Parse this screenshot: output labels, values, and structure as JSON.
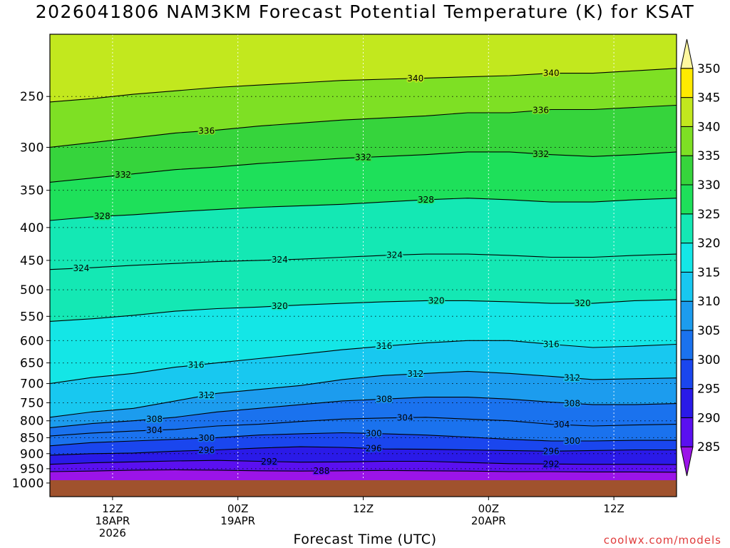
{
  "chart_data": {
    "type": "heatmap",
    "title": "2026041806 NAM3KM Forecast Potential Temperature (K) for KSAT",
    "xlabel": "Forecast Time (UTC)",
    "ylabel": "",
    "y_axis": {
      "scale": "log-pressure",
      "ticks": [
        250,
        300,
        350,
        400,
        450,
        500,
        550,
        600,
        650,
        700,
        750,
        800,
        850,
        900,
        950,
        1000
      ],
      "ticks_text": [
        "250",
        "300",
        "350",
        "400",
        "450",
        "500",
        "550",
        "600",
        "650",
        "700",
        "750",
        "800",
        "850",
        "900",
        "950",
        "1000"
      ],
      "range": [
        200,
        1050
      ]
    },
    "x_axis": {
      "ticks": [
        {
          "t": 6,
          "lines": [
            "12Z",
            "18APR",
            "2026"
          ]
        },
        {
          "t": 18,
          "lines": [
            "00Z",
            "19APR"
          ]
        },
        {
          "t": 30,
          "lines": [
            "12Z"
          ]
        },
        {
          "t": 42,
          "lines": [
            "00Z",
            "20APR"
          ]
        },
        {
          "t": 54,
          "lines": [
            "12Z"
          ]
        }
      ],
      "range_hours": [
        0,
        60
      ]
    },
    "colorbar": {
      "levels": [
        285,
        290,
        295,
        300,
        305,
        310,
        315,
        320,
        325,
        330,
        335,
        340,
        345,
        350
      ],
      "labels": [
        "285",
        "290",
        "295",
        "300",
        "305",
        "310",
        "315",
        "320",
        "325",
        "330",
        "335",
        "340",
        "345",
        "350"
      ],
      "colors": [
        "#9b14e8",
        "#5a10f0",
        "#2a1ae8",
        "#1a46ee",
        "#1a72ee",
        "#1c9cee",
        "#18c8f0",
        "#14e6e6",
        "#14e8b4",
        "#1ee05a",
        "#36d43c",
        "#7ee024",
        "#c2e81e",
        "#ffea00",
        "#fff8a0"
      ]
    },
    "contours": [
      {
        "level": 288,
        "p": [
          960,
          958,
          955,
          954,
          955,
          957,
          958,
          957,
          956,
          957,
          958,
          960,
          960,
          961,
          961,
          962
        ],
        "labels": [
          {
            "t": 26,
            "text": "288"
          }
        ]
      },
      {
        "level": 292,
        "p": [
          935,
          930,
          927,
          924,
          922,
          925,
          928,
          927,
          925,
          925,
          929,
          933,
          934,
          935,
          935,
          936
        ],
        "labels": [
          {
            "t": 21,
            "text": "292"
          },
          {
            "t": 48,
            "text": "292"
          }
        ]
      },
      {
        "level": 296,
        "p": [
          905,
          900,
          898,
          892,
          888,
          882,
          878,
          880,
          885,
          886,
          888,
          890,
          892,
          890,
          888,
          888
        ],
        "labels": [
          {
            "t": 15,
            "text": "296"
          },
          {
            "t": 31,
            "text": "296"
          },
          {
            "t": 48,
            "text": "296"
          }
        ]
      },
      {
        "level": 300,
        "p": [
          875,
          865,
          860,
          855,
          850,
          842,
          838,
          835,
          838,
          842,
          848,
          855,
          860,
          860,
          858,
          858
        ],
        "labels": [
          {
            "t": 15,
            "text": "300"
          },
          {
            "t": 31,
            "text": "300"
          },
          {
            "t": 50,
            "text": "300"
          }
        ]
      },
      {
        "level": 304,
        "p": [
          845,
          836,
          830,
          825,
          815,
          810,
          802,
          795,
          792,
          790,
          795,
          800,
          810,
          815,
          812,
          810
        ],
        "labels": [
          {
            "t": 10,
            "text": "304"
          },
          {
            "t": 34,
            "text": "304"
          },
          {
            "t": 49,
            "text": "304"
          }
        ]
      },
      {
        "level": 308,
        "p": [
          820,
          808,
          800,
          790,
          775,
          765,
          755,
          745,
          740,
          735,
          735,
          740,
          748,
          755,
          755,
          752
        ],
        "labels": [
          {
            "t": 10,
            "text": "308"
          },
          {
            "t": 32,
            "text": "308"
          },
          {
            "t": 50,
            "text": "308"
          }
        ]
      },
      {
        "level": 312,
        "p": [
          790,
          775,
          765,
          745,
          725,
          715,
          705,
          690,
          680,
          675,
          670,
          675,
          682,
          690,
          688,
          686
        ],
        "labels": [
          {
            "t": 15,
            "text": "312"
          },
          {
            "t": 35,
            "text": "312"
          },
          {
            "t": 50,
            "text": "312"
          }
        ]
      },
      {
        "level": 316,
        "p": [
          700,
          685,
          675,
          660,
          650,
          640,
          630,
          620,
          612,
          605,
          600,
          600,
          608,
          615,
          612,
          608
        ],
        "labels": [
          {
            "t": 14,
            "text": "316"
          },
          {
            "t": 32,
            "text": "316"
          },
          {
            "t": 48,
            "text": "316"
          }
        ]
      },
      {
        "level": 320,
        "p": [
          560,
          555,
          548,
          540,
          535,
          532,
          528,
          525,
          522,
          520,
          520,
          522,
          525,
          525,
          520,
          518
        ],
        "labels": [
          {
            "t": 22,
            "text": "320"
          },
          {
            "t": 37,
            "text": "320"
          },
          {
            "t": 51,
            "text": "320"
          }
        ]
      },
      {
        "level": 324,
        "p": [
          465,
          462,
          458,
          455,
          452,
          450,
          448,
          445,
          442,
          440,
          440,
          442,
          445,
          445,
          442,
          440
        ],
        "labels": [
          {
            "t": 3,
            "text": "324"
          },
          {
            "t": 22,
            "text": "324"
          },
          {
            "t": 33,
            "text": "324"
          }
        ]
      },
      {
        "level": 328,
        "p": [
          390,
          385,
          382,
          378,
          375,
          372,
          370,
          368,
          365,
          362,
          360,
          362,
          365,
          365,
          362,
          360
        ],
        "labels": [
          {
            "t": 5,
            "text": "328"
          },
          {
            "t": 36,
            "text": "328"
          }
        ]
      },
      {
        "level": 332,
        "p": [
          340,
          335,
          330,
          325,
          322,
          318,
          315,
          312,
          310,
          308,
          305,
          305,
          308,
          310,
          308,
          305
        ],
        "labels": [
          {
            "t": 7,
            "text": "332"
          },
          {
            "t": 30,
            "text": "332"
          },
          {
            "t": 47,
            "text": "332"
          }
        ]
      },
      {
        "level": 336,
        "p": [
          300,
          295,
          290,
          285,
          282,
          278,
          275,
          272,
          270,
          268,
          265,
          265,
          262,
          262,
          260,
          258
        ],
        "labels": [
          {
            "t": 15,
            "text": "336"
          },
          {
            "t": 47,
            "text": "336"
          }
        ]
      },
      {
        "level": 340,
        "p": [
          255,
          252,
          248,
          245,
          242,
          240,
          238,
          236,
          235,
          234,
          233,
          232,
          230,
          230,
          228,
          226
        ],
        "labels": [
          {
            "t": 35,
            "text": "340"
          },
          {
            "t": 48,
            "text": "340"
          }
        ]
      }
    ]
  },
  "footer": {
    "xlabel": "Forecast Time (UTC)",
    "credit": "coolwx.com/models"
  }
}
